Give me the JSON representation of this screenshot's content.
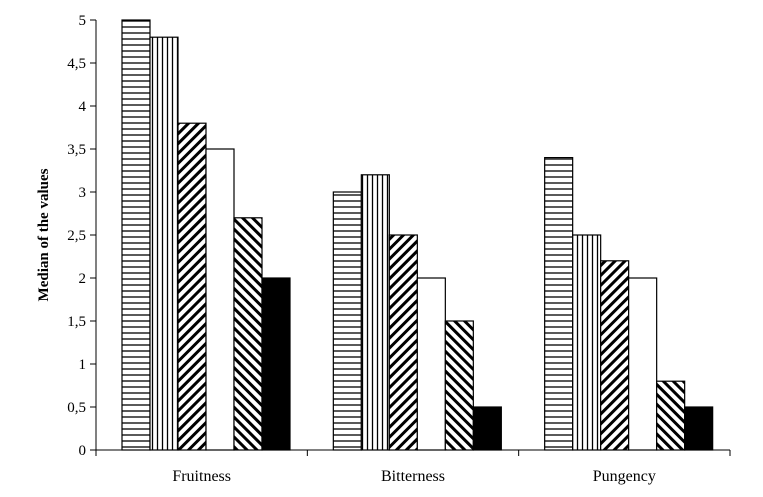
{
  "chart_data": {
    "type": "bar",
    "categories": [
      "Fruitness",
      "Bitterness",
      "Pungency"
    ],
    "series": [
      {
        "pattern": "horizontal-lines",
        "values": [
          5.0,
          3.0,
          3.4
        ]
      },
      {
        "pattern": "vertical-lines",
        "values": [
          4.8,
          3.2,
          2.5
        ]
      },
      {
        "pattern": "diagonal-down",
        "values": [
          3.8,
          2.5,
          2.2
        ]
      },
      {
        "pattern": "white",
        "values": [
          3.5,
          2.0,
          2.0
        ]
      },
      {
        "pattern": "diagonal-up",
        "values": [
          2.7,
          1.5,
          0.8
        ]
      },
      {
        "pattern": "black",
        "values": [
          2.0,
          0.5,
          0.5
        ]
      }
    ],
    "ylabel": "Median of the values",
    "xlabel": "",
    "title": "",
    "ylim": [
      0,
      5
    ],
    "yticks": [
      "0",
      "0,5",
      "1",
      "1,5",
      "2",
      "2,5",
      "3",
      "3,5",
      "4",
      "4,5",
      "5"
    ],
    "grid": false,
    "legend": "none"
  }
}
